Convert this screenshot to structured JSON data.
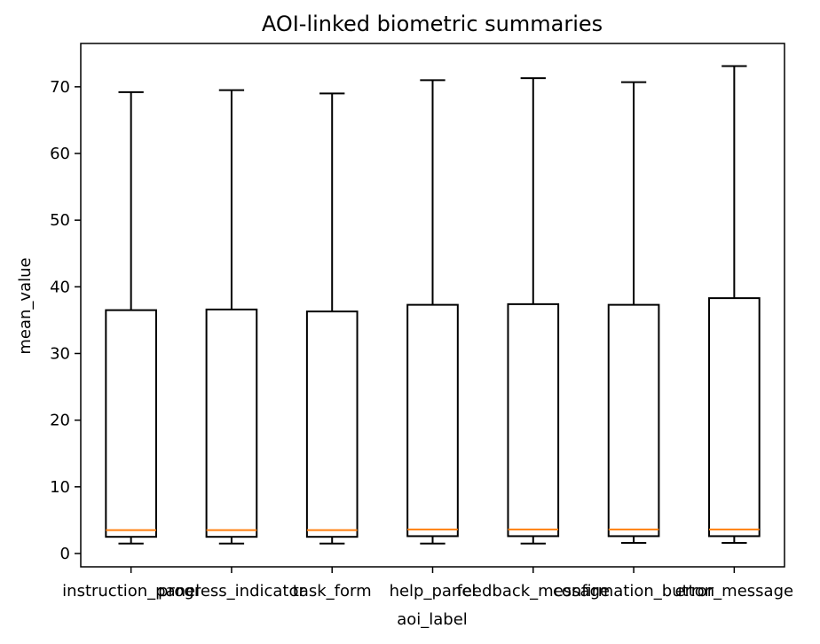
{
  "chart_data": {
    "type": "box",
    "title": "AOI-linked biometric summaries",
    "xlabel": "aoi_label",
    "ylabel": "mean_value",
    "ylim": [
      -2,
      76.5
    ],
    "yticks": [
      0,
      10,
      20,
      30,
      40,
      50,
      60,
      70
    ],
    "grid": false,
    "categories": [
      "instruction_panel",
      "progress_indicator",
      "task_form",
      "help_panel",
      "feedback_message",
      "confirmation_button",
      "error_message"
    ],
    "boxes": [
      {
        "whisker_low": 1.5,
        "q1": 2.5,
        "median": 3.5,
        "q3": 36.5,
        "whisker_high": 69.2
      },
      {
        "whisker_low": 1.5,
        "q1": 2.5,
        "median": 3.5,
        "q3": 36.6,
        "whisker_high": 69.5
      },
      {
        "whisker_low": 1.5,
        "q1": 2.5,
        "median": 3.5,
        "q3": 36.3,
        "whisker_high": 69.0
      },
      {
        "whisker_low": 1.5,
        "q1": 2.6,
        "median": 3.6,
        "q3": 37.3,
        "whisker_high": 71.0
      },
      {
        "whisker_low": 1.5,
        "q1": 2.6,
        "median": 3.6,
        "q3": 37.4,
        "whisker_high": 71.3
      },
      {
        "whisker_low": 1.6,
        "q1": 2.6,
        "median": 3.6,
        "q3": 37.3,
        "whisker_high": 70.7
      },
      {
        "whisker_low": 1.6,
        "q1": 2.6,
        "median": 3.6,
        "q3": 38.3,
        "whisker_high": 73.1
      }
    ],
    "colors": {
      "box": "#000000",
      "median": "#ff7f0e"
    }
  }
}
